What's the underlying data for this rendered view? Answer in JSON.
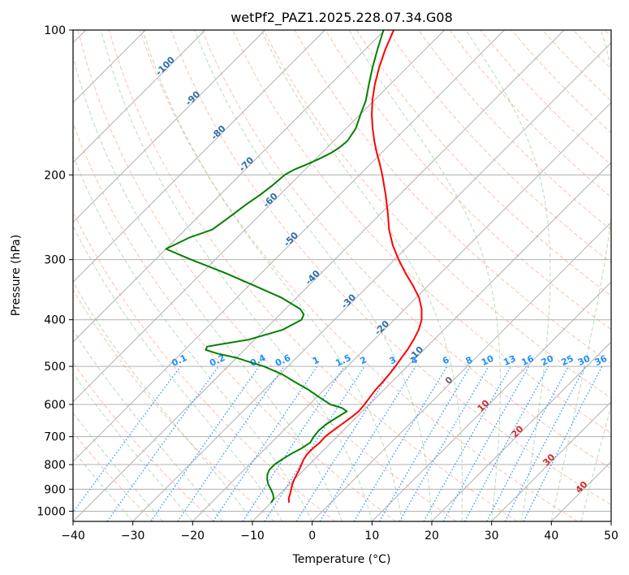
{
  "chart_data": {
    "type": "skew-t",
    "title": "wetPf2_PAZ1.2025.228.07.34.G08",
    "xlabel": "Temperature (°C)",
    "ylabel": "Pressure (hPa)",
    "xlim": [
      -40,
      50
    ],
    "ylim": [
      1050,
      100
    ],
    "y_scale": "log",
    "grid": true,
    "x_ticks": [
      -40,
      -30,
      -20,
      -10,
      0,
      10,
      20,
      30,
      40,
      50
    ],
    "x_tick_labels": [
      "−40",
      "−30",
      "−20",
      "−10",
      "0",
      "10",
      "20",
      "30",
      "40",
      "50"
    ],
    "y_ticks": [
      1000,
      900,
      800,
      700,
      600,
      500,
      400,
      300,
      200,
      100
    ],
    "y_tick_labels": [
      "1000",
      "900",
      "800",
      "700",
      "600",
      "500",
      "400",
      "300",
      "200",
      "100"
    ],
    "series": [
      {
        "kind": "temperature",
        "color": "#ff0000",
        "points": [
          [
            960,
            -7.0
          ],
          [
            940,
            -7.8
          ],
          [
            920,
            -8.3
          ],
          [
            900,
            -8.9
          ],
          [
            880,
            -9.5
          ],
          [
            860,
            -10.0
          ],
          [
            840,
            -10.4
          ],
          [
            820,
            -10.8
          ],
          [
            800,
            -11.3
          ],
          [
            780,
            -11.8
          ],
          [
            760,
            -12.1
          ],
          [
            740,
            -12.1
          ],
          [
            720,
            -11.9
          ],
          [
            700,
            -12.0
          ],
          [
            680,
            -11.7
          ],
          [
            660,
            -11.3
          ],
          [
            640,
            -10.9
          ],
          [
            620,
            -10.6
          ],
          [
            600,
            -10.8
          ],
          [
            580,
            -11.1
          ],
          [
            560,
            -11.4
          ],
          [
            540,
            -11.5
          ],
          [
            520,
            -11.7
          ],
          [
            500,
            -12.0
          ],
          [
            480,
            -12.4
          ],
          [
            460,
            -12.8
          ],
          [
            440,
            -13.4
          ],
          [
            420,
            -14.2
          ],
          [
            400,
            -15.4
          ],
          [
            380,
            -17.2
          ],
          [
            360,
            -19.5
          ],
          [
            340,
            -22.5
          ],
          [
            320,
            -25.9
          ],
          [
            300,
            -29.3
          ],
          [
            280,
            -32.7
          ],
          [
            260,
            -35.9
          ],
          [
            240,
            -38.9
          ],
          [
            220,
            -42.3
          ],
          [
            200,
            -46.2
          ],
          [
            190,
            -48.4
          ],
          [
            180,
            -50.8
          ],
          [
            170,
            -53.2
          ],
          [
            160,
            -55.6
          ],
          [
            150,
            -58.0
          ],
          [
            140,
            -60.3
          ],
          [
            130,
            -62.5
          ],
          [
            120,
            -64.6
          ],
          [
            110,
            -66.6
          ],
          [
            100,
            -68.5
          ]
        ]
      },
      {
        "kind": "dewpoint",
        "color": "#008000",
        "points": [
          [
            960,
            -10.0
          ],
          [
            940,
            -10.3
          ],
          [
            920,
            -11.2
          ],
          [
            900,
            -12.3
          ],
          [
            880,
            -13.5
          ],
          [
            860,
            -14.5
          ],
          [
            840,
            -15.3
          ],
          [
            820,
            -15.8
          ],
          [
            800,
            -15.8
          ],
          [
            780,
            -15.4
          ],
          [
            760,
            -14.8
          ],
          [
            740,
            -14.0
          ],
          [
            720,
            -13.5
          ],
          [
            700,
            -13.9
          ],
          [
            680,
            -14.1
          ],
          [
            660,
            -13.9
          ],
          [
            640,
            -13.3
          ],
          [
            620,
            -12.6
          ],
          [
            610,
            -14.0
          ],
          [
            600,
            -16.5
          ],
          [
            580,
            -19.5
          ],
          [
            560,
            -22.5
          ],
          [
            540,
            -26.0
          ],
          [
            520,
            -29.5
          ],
          [
            500,
            -34.0
          ],
          [
            490,
            -37.0
          ],
          [
            480,
            -40.0
          ],
          [
            470,
            -44.0
          ],
          [
            462,
            -46.5
          ],
          [
            455,
            -46.8
          ],
          [
            450,
            -45.0
          ],
          [
            440,
            -41.0
          ],
          [
            420,
            -37.0
          ],
          [
            400,
            -35.5
          ],
          [
            390,
            -36.0
          ],
          [
            380,
            -37.5
          ],
          [
            360,
            -42.5
          ],
          [
            340,
            -49.0
          ],
          [
            320,
            -56.0
          ],
          [
            300,
            -64.0
          ],
          [
            285,
            -70.0
          ],
          [
            270,
            -68.0
          ],
          [
            260,
            -65.5
          ],
          [
            250,
            -65.0
          ],
          [
            240,
            -64.5
          ],
          [
            230,
            -64.0
          ],
          [
            220,
            -63.3
          ],
          [
            210,
            -62.8
          ],
          [
            200,
            -62.5
          ],
          [
            195,
            -61.8
          ],
          [
            190,
            -60.5
          ],
          [
            185,
            -59.4
          ],
          [
            180,
            -58.4
          ],
          [
            175,
            -57.9
          ],
          [
            170,
            -57.7
          ],
          [
            160,
            -58.4
          ],
          [
            150,
            -59.9
          ],
          [
            140,
            -61.4
          ],
          [
            130,
            -63.5
          ],
          [
            120,
            -65.7
          ],
          [
            110,
            -67.9
          ],
          [
            100,
            -70.2
          ]
        ]
      }
    ],
    "reference_lines": {
      "isotherms": {
        "color": "#b0b0b0",
        "style": "solid"
      },
      "dry_adiabats": {
        "color": "#ff8c69",
        "style": "dashed"
      },
      "moist_adiabats": {
        "color": "#7fbf7f",
        "style": "dashed"
      },
      "mixing_ratio": {
        "color": "#1e90ff",
        "style": "dotted",
        "values": [
          0.1,
          0.2,
          0.4,
          0.6,
          1,
          1.5,
          2,
          3,
          4,
          6,
          8,
          10,
          13,
          16,
          20,
          25,
          30,
          36
        ],
        "labels": [
          "0.1",
          "0.2",
          "0.4",
          "0.6",
          "1",
          "1.5",
          "2",
          "3",
          "4",
          "6",
          "8",
          "10",
          "13",
          "16",
          "20",
          "25",
          "30",
          "36"
        ]
      },
      "freezing_level_label": "0",
      "isotherm_labels_cold": [
        "-100",
        "-90",
        "-80",
        "-70",
        "-60",
        "-50",
        "-40",
        "-30",
        "-20",
        "-10"
      ],
      "isotherm_labels_warm": [
        "10",
        "20",
        "30",
        "40"
      ]
    }
  }
}
